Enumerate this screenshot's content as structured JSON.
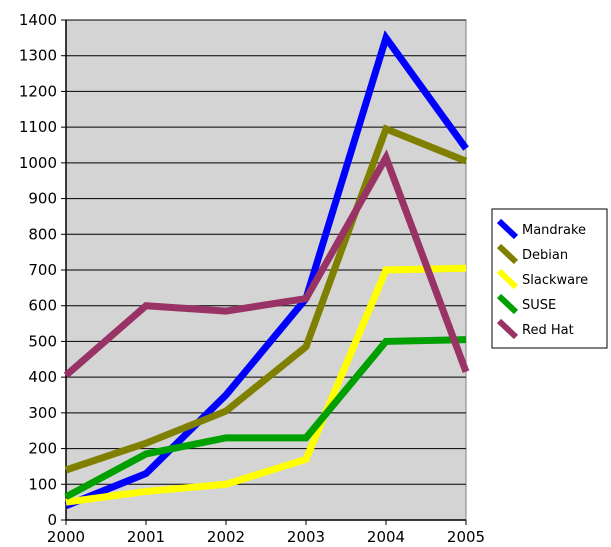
{
  "chart_data": {
    "type": "line",
    "title": "",
    "xlabel": "",
    "ylabel": "",
    "x": [
      "2000",
      "2001",
      "2002",
      "2003",
      "2004",
      "2005"
    ],
    "ylim": [
      0,
      1400
    ],
    "yticks": [
      "0",
      "100",
      "200",
      "300",
      "400",
      "500",
      "600",
      "700",
      "800",
      "900",
      "1000",
      "1100",
      "1200",
      "1300",
      "1400"
    ],
    "grid": true,
    "legend_position": "right",
    "plot_background": "#d4d4d4",
    "series": [
      {
        "name": "Mandrake",
        "color": "#0000ff",
        "values": [
          40,
          130,
          350,
          620,
          1350,
          1040
        ]
      },
      {
        "name": "Debian",
        "color": "#808000",
        "values": [
          140,
          215,
          305,
          485,
          1095,
          1005
        ]
      },
      {
        "name": "Slackware",
        "color": "#ffff00",
        "values": [
          50,
          80,
          100,
          170,
          700,
          705
        ]
      },
      {
        "name": "SUSE",
        "color": "#00a000",
        "values": [
          65,
          185,
          230,
          230,
          500,
          505
        ]
      },
      {
        "name": "Red Hat",
        "color": "#993366",
        "values": [
          405,
          600,
          585,
          620,
          1015,
          415
        ]
      }
    ]
  }
}
